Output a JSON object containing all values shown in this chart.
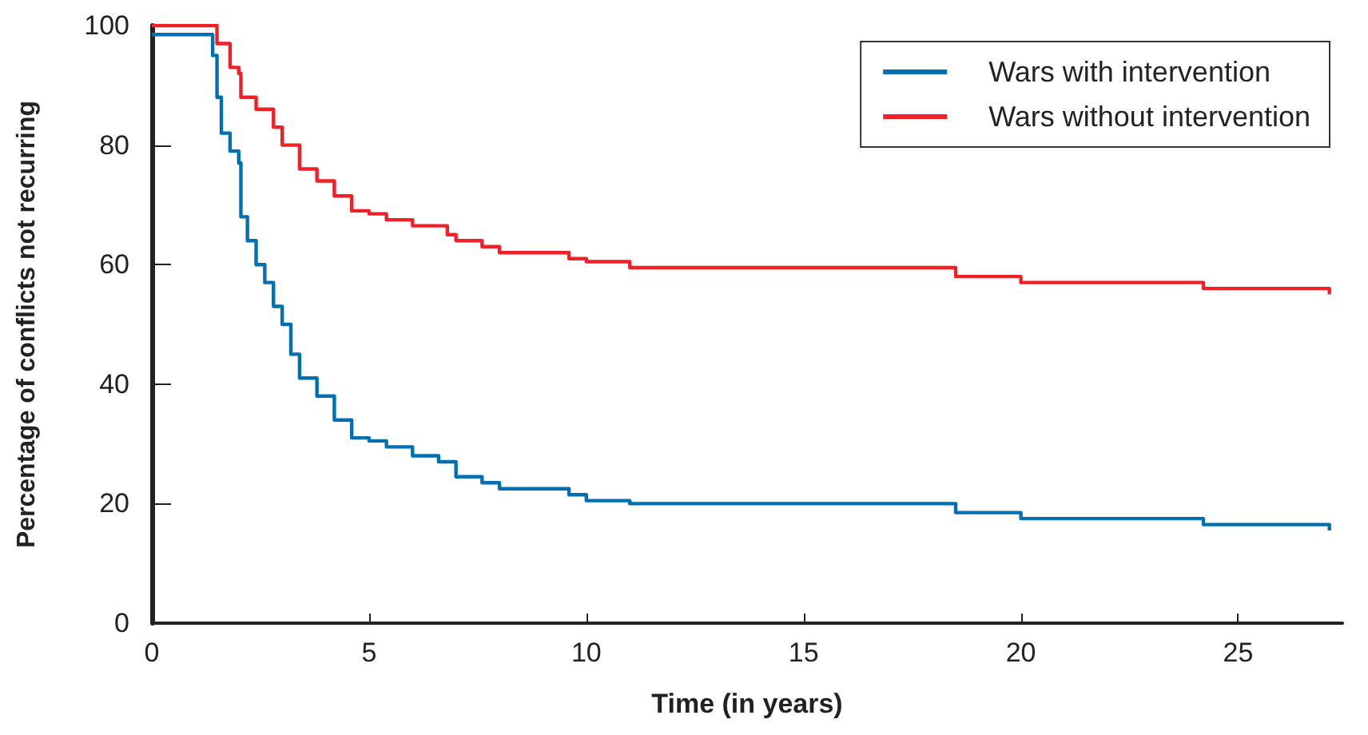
{
  "chart_data": {
    "type": "step",
    "xlabel": "Time (in years)",
    "ylabel": "Percentage of conflicts not recurring",
    "xlim": [
      0,
      27.4
    ],
    "xticks": [
      0,
      5,
      10,
      15,
      20,
      25
    ],
    "ylim": [
      0,
      100
    ],
    "yticks": [
      0,
      20,
      40,
      60,
      80,
      100
    ],
    "grid": false,
    "legend": "top right",
    "marker": "none",
    "line_style": "solid",
    "series": [
      {
        "name": "Wars with intervention",
        "color": "#0070b0",
        "x": [
          0,
          1.2,
          1.4,
          1.5,
          1.6,
          1.8,
          2.0,
          2.05,
          2.2,
          2.4,
          2.6,
          2.8,
          3.0,
          3.2,
          3.4,
          3.8,
          4.2,
          4.6,
          5,
          5.4,
          6,
          6.6,
          7,
          7.6,
          8,
          9,
          9.6,
          10,
          11,
          17.7,
          18.5,
          20,
          24.2,
          27.1
        ],
        "values": [
          98.5,
          98.5,
          95,
          88,
          82,
          79,
          77,
          68,
          64,
          60,
          57,
          53,
          50,
          45,
          41,
          38,
          34,
          31,
          30.5,
          29.5,
          28,
          27,
          24.5,
          23.5,
          22.5,
          22.5,
          21.5,
          20.5,
          20,
          20,
          18.5,
          17.5,
          16.5,
          15.5
        ]
      },
      {
        "name": "Wars without intervention",
        "color": "#ee2028",
        "x": [
          0,
          1.2,
          1.5,
          1.8,
          2.0,
          2.05,
          2.4,
          2.8,
          3,
          3.4,
          3.8,
          4.2,
          4.6,
          5,
          5.4,
          6,
          6.8,
          7,
          7.6,
          8,
          9,
          9.6,
          10,
          11,
          17.7,
          18.5,
          20,
          24.2,
          27.1
        ],
        "values": [
          100,
          100,
          97,
          93,
          92,
          88,
          86,
          83,
          80,
          76,
          74,
          71.5,
          69,
          68.5,
          67.5,
          66.5,
          65,
          64,
          63,
          62,
          62,
          61,
          60.5,
          59.5,
          59.5,
          58,
          57,
          56,
          55
        ]
      }
    ]
  }
}
